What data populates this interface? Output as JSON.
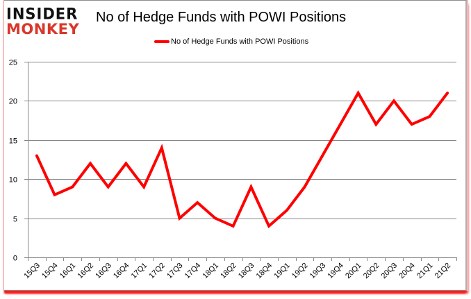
{
  "logo": {
    "line1": "INSIDER",
    "line2": "MONKEY"
  },
  "chart_data": {
    "type": "line",
    "title": "No of Hedge Funds with POWI Positions",
    "xlabel": "",
    "ylabel": "",
    "ylim": [
      0,
      25
    ],
    "yticks": [
      0,
      5,
      10,
      15,
      20,
      25
    ],
    "grid": true,
    "legend_position": "top",
    "categories": [
      "15Q3",
      "15Q4",
      "16Q1",
      "16Q2",
      "16Q3",
      "16Q4",
      "17Q1",
      "17Q2",
      "17Q3",
      "17Q4",
      "18Q1",
      "18Q2",
      "18Q3",
      "18Q4",
      "19Q1",
      "19Q2",
      "19Q3",
      "19Q4",
      "20Q1",
      "20Q2",
      "20Q3",
      "20Q4",
      "21Q1",
      "21Q2"
    ],
    "series": [
      {
        "name": "No of Hedge Funds with POWI Positions",
        "color": "#ff0000",
        "values": [
          13,
          8,
          9,
          12,
          9,
          12,
          9,
          14,
          5,
          7,
          5,
          4,
          9,
          4,
          6,
          9,
          13,
          17,
          21,
          17,
          20,
          17,
          18,
          21
        ]
      }
    ]
  },
  "colors": {
    "line": "#ff0000",
    "grid": "#868686",
    "logo_red": "#d9372b"
  }
}
